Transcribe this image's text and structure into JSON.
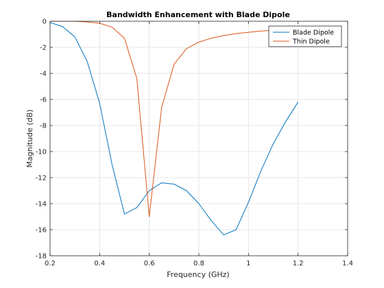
{
  "chart_data": {
    "type": "line",
    "title": "Bandwidth Enhancement with Blade Dipole",
    "xlabel": "Frequency (GHz)",
    "ylabel": "Magnitude (dB)",
    "xlim": [
      0.2,
      1.4
    ],
    "ylim": [
      -18,
      0
    ],
    "xticks": [
      0.2,
      0.4,
      0.6,
      0.8,
      1,
      1.2,
      1.4
    ],
    "yticks": [
      0,
      -2,
      -4,
      -6,
      -8,
      -10,
      -12,
      -14,
      -16,
      -18
    ],
    "xtick_labels": [
      "0.2",
      "0.4",
      "0.6",
      "0.8",
      "1",
      "1.2",
      "1.4"
    ],
    "ytick_labels": [
      "0",
      "-2",
      "-4",
      "-6",
      "-8",
      "-10",
      "-12",
      "-14",
      "-16",
      "-18"
    ],
    "grid": true,
    "legend_position": "top-right",
    "series": [
      {
        "name": "Blade Dipole",
        "color": "#0072BD",
        "x": [
          0.2,
          0.25,
          0.3,
          0.35,
          0.4,
          0.45,
          0.5,
          0.55,
          0.6,
          0.65,
          0.7,
          0.75,
          0.8,
          0.85,
          0.9,
          0.95,
          1.0,
          1.05,
          1.1,
          1.15,
          1.2
        ],
        "y": [
          -0.1,
          -0.4,
          -1.2,
          -3.1,
          -6.3,
          -11.0,
          -14.8,
          -14.3,
          -13.0,
          -12.4,
          -12.5,
          -13.0,
          -14.0,
          -15.3,
          -16.4,
          -16.0,
          -13.9,
          -11.5,
          -9.4,
          -7.7,
          -6.2
        ]
      },
      {
        "name": "Thin Dipole",
        "color": "#D95319",
        "x": [
          0.2,
          0.25,
          0.3,
          0.35,
          0.4,
          0.45,
          0.5,
          0.55,
          0.6,
          0.65,
          0.7,
          0.75,
          0.8,
          0.85,
          0.9,
          0.95,
          1.0,
          1.05,
          1.1,
          1.15,
          1.2
        ],
        "y": [
          0.0,
          0.0,
          0.0,
          -0.05,
          -0.15,
          -0.45,
          -1.3,
          -4.4,
          -15.0,
          -6.6,
          -3.3,
          -2.1,
          -1.6,
          -1.3,
          -1.1,
          -0.95,
          -0.85,
          -0.75,
          -0.7,
          -0.65,
          -0.6
        ]
      }
    ]
  }
}
